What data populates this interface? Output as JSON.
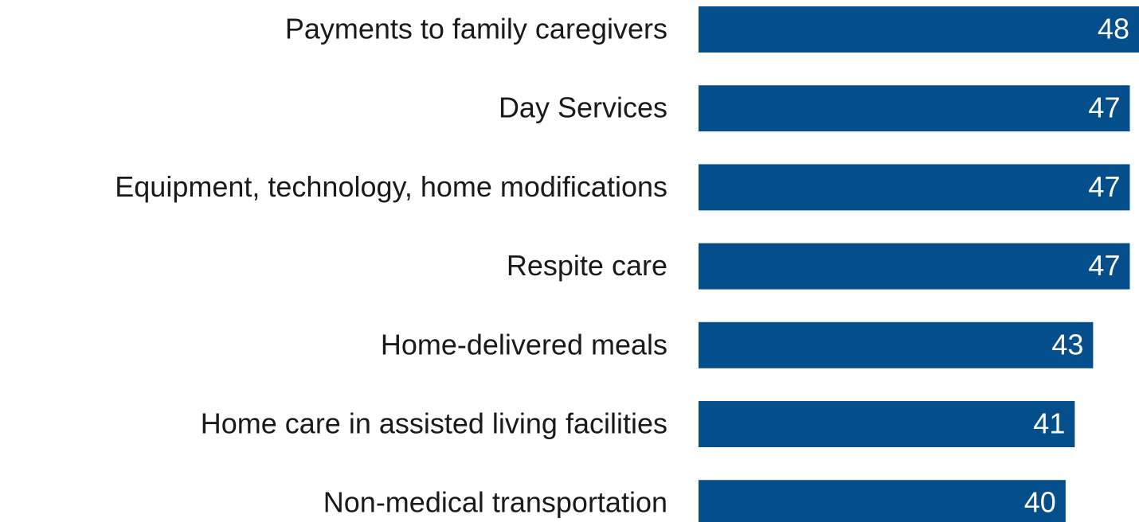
{
  "chart_data": {
    "type": "bar",
    "orientation": "horizontal",
    "categories": [
      "Payments to family caregivers",
      "Day Services",
      "Equipment, technology, home modifications",
      "Respite care",
      "Home-delivered meals",
      "Home care in assisted living facilities",
      "Non-medical transportation"
    ],
    "values": [
      48,
      47,
      47,
      47,
      43,
      41,
      40
    ],
    "color": "#034e8b",
    "xlim": [
      0,
      48
    ]
  }
}
